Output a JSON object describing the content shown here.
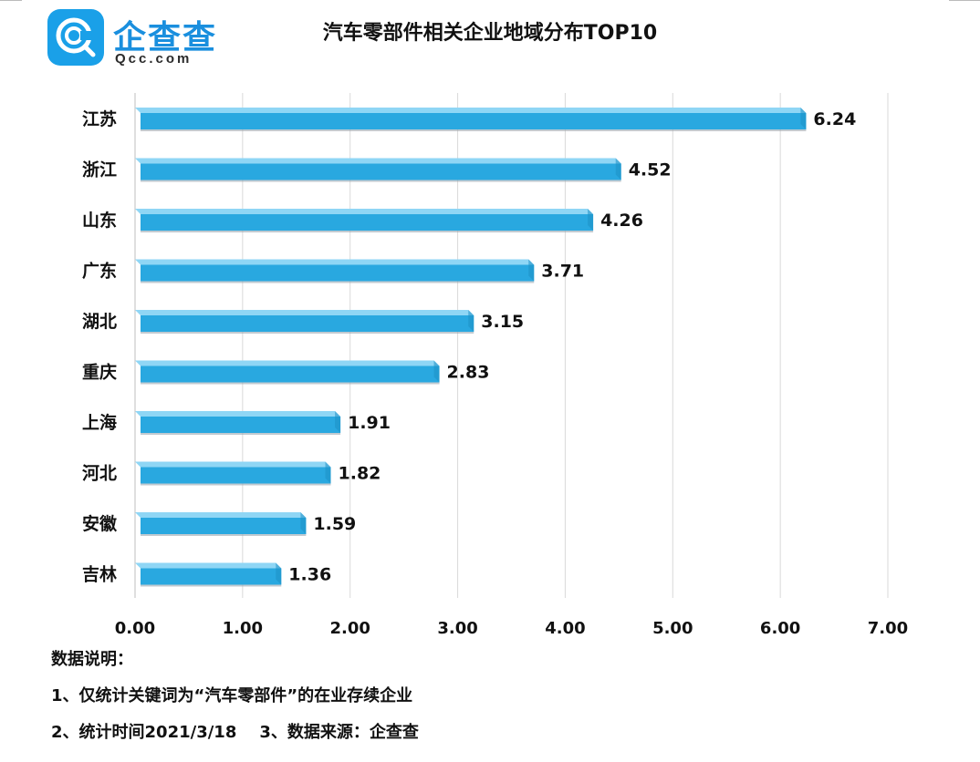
{
  "logo": {
    "brand_cn": "企查查",
    "brand_en": "Qcc.com"
  },
  "chart_data": {
    "type": "bar",
    "orientation": "horizontal",
    "title": "汽车零部件相关企业地域分布TOP10",
    "categories": [
      "江苏",
      "浙江",
      "山东",
      "广东",
      "湖北",
      "重庆",
      "上海",
      "河北",
      "安徽",
      "吉林"
    ],
    "values": [
      6.24,
      4.52,
      4.26,
      3.71,
      3.15,
      2.83,
      1.91,
      1.82,
      1.59,
      1.36
    ],
    "value_labels": [
      "6.24",
      "4.52",
      "4.26",
      "3.71",
      "3.15",
      "2.83",
      "1.91",
      "1.82",
      "1.59",
      "1.36"
    ],
    "xlim": [
      0,
      7
    ],
    "xticks": [
      "0.00",
      "1.00",
      "2.00",
      "3.00",
      "4.00",
      "5.00",
      "6.00",
      "7.00"
    ],
    "grid": true,
    "bar_color": "#29a8e0",
    "bar_top_color": "#8fd6f5"
  },
  "notes": {
    "heading": "数据说明：",
    "line1": "1、仅统计关键词为“汽车零部件”的在业存续企业",
    "line2": "2、统计时间2021/3/18    3、数据来源：企查查"
  }
}
